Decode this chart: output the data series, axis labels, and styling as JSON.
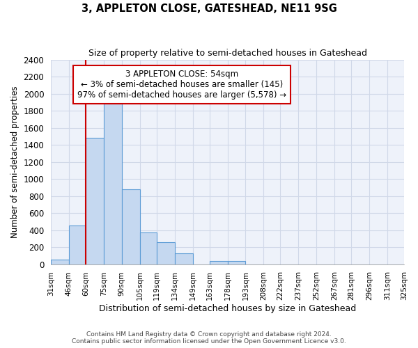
{
  "title1": "3, APPLETON CLOSE, GATESHEAD, NE11 9SG",
  "title2": "Size of property relative to semi-detached houses in Gateshead",
  "xlabel": "Distribution of semi-detached houses by size in Gateshead",
  "ylabel": "Number of semi-detached properties",
  "bins": [
    "31sqm",
    "46sqm",
    "60sqm",
    "75sqm",
    "90sqm",
    "105sqm",
    "119sqm",
    "134sqm",
    "149sqm",
    "163sqm",
    "178sqm",
    "193sqm",
    "208sqm",
    "222sqm",
    "237sqm",
    "252sqm",
    "267sqm",
    "281sqm",
    "296sqm",
    "311sqm",
    "325sqm"
  ],
  "bin_edges": [
    31,
    46,
    60,
    75,
    90,
    105,
    119,
    134,
    149,
    163,
    178,
    193,
    208,
    222,
    237,
    252,
    267,
    281,
    296,
    311,
    325
  ],
  "values": [
    50,
    450,
    1480,
    2000,
    880,
    375,
    260,
    130,
    0,
    35,
    35,
    0,
    0,
    0,
    0,
    0,
    0,
    0,
    0,
    0
  ],
  "bar_color": "#c5d8f0",
  "bar_edge_color": "#5b9bd5",
  "annotation_text": "3 APPLETON CLOSE: 54sqm\n← 3% of semi-detached houses are smaller (145)\n97% of semi-detached houses are larger (5,578) →",
  "vline_x": 60,
  "vline_color": "#cc0000",
  "annotation_box_color": "#ffffff",
  "annotation_box_edge": "#cc0000",
  "ylim": [
    0,
    2400
  ],
  "yticks": [
    0,
    200,
    400,
    600,
    800,
    1000,
    1200,
    1400,
    1600,
    1800,
    2000,
    2200,
    2400
  ],
  "footer1": "Contains HM Land Registry data © Crown copyright and database right 2024.",
  "footer2": "Contains public sector information licensed under the Open Government Licence v3.0.",
  "grid_color": "#d0d8e8",
  "background_color": "#eef2fa"
}
